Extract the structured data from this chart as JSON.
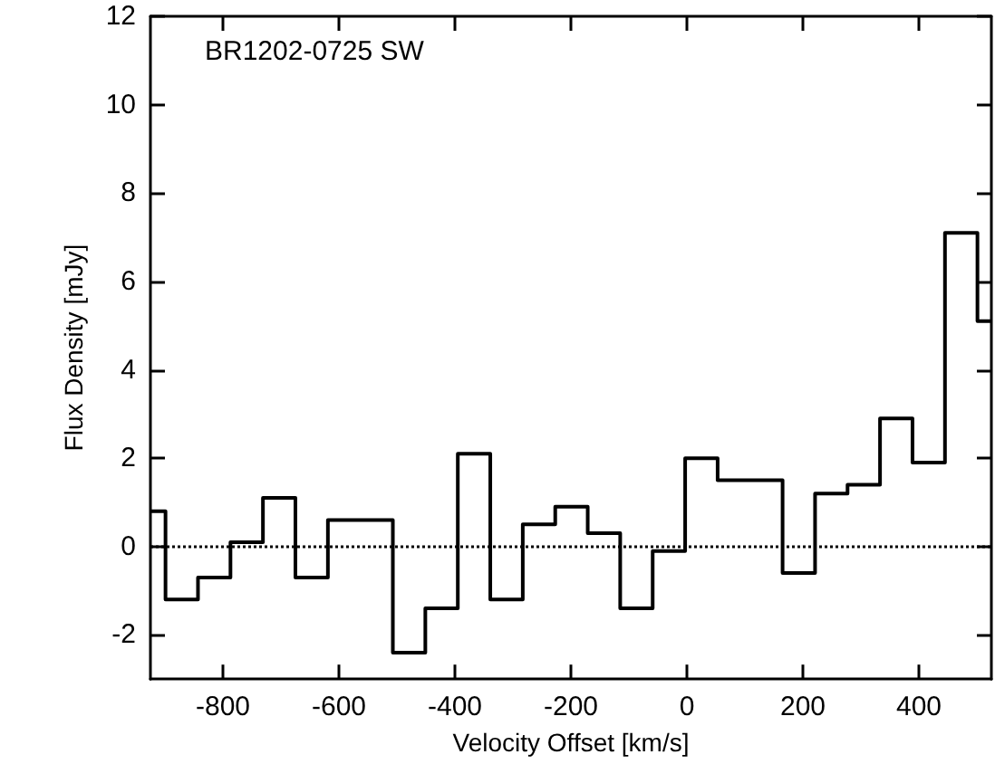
{
  "chart_data": {
    "type": "histogram",
    "title": "BR1202-0725 SW",
    "xlabel": "Velocity Offset [km/s]",
    "ylabel": "Flux Density [mJy]",
    "bins": [
      -925,
      -899,
      -843,
      -787,
      -731,
      -675,
      -619,
      -563,
      -507,
      -451,
      -395,
      -339,
      -283,
      -227,
      -171,
      -115,
      -59,
      -3,
      53,
      109,
      165,
      221,
      277,
      333,
      389,
      445,
      501,
      525
    ],
    "values": [
      0.8,
      -1.2,
      -0.7,
      0.1,
      1.1,
      -0.7,
      0.6,
      0.6,
      -2.4,
      -1.4,
      2.1,
      -1.2,
      0.5,
      0.9,
      0.3,
      -1.4,
      -0.1,
      2.0,
      1.5,
      1.5,
      -0.6,
      1.2,
      1.4,
      2.9,
      1.9,
      7.1,
      5.1
    ],
    "color": "#000000",
    "line_style": "solid",
    "xlim": [
      -925,
      525
    ],
    "xticks": [
      -800,
      -600,
      -400,
      -200,
      0,
      200,
      400
    ],
    "ylim": [
      -3,
      12
    ],
    "yticks": [
      -2,
      0,
      2,
      4,
      6,
      8,
      10,
      12
    ],
    "ref_lines": [
      {
        "axis": "y",
        "value": 0,
        "line_style": "dotted",
        "color": "#000000"
      }
    ],
    "grid": false
  }
}
